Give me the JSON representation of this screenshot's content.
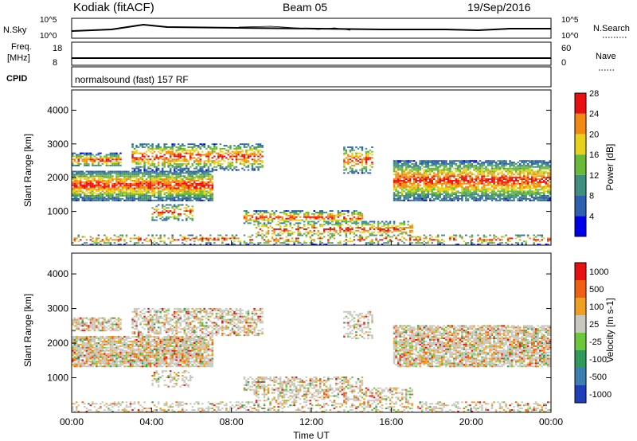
{
  "header": {
    "station": "Kodiak (fitACF)",
    "beam": "Beam 05",
    "date": "19/Sep/2016"
  },
  "nsky_panel": {
    "left_label": "N.Sky",
    "right_label": "N.Search",
    "left_ticks": [
      "10^5",
      "10^0"
    ],
    "right_ticks": [
      "10^5",
      "10^0"
    ]
  },
  "freq_panel": {
    "left_label_line1": "Freq.",
    "left_label_line2": "[MHz]",
    "right_label": "Nave",
    "left_ticks": [
      "18",
      "8"
    ],
    "right_ticks": [
      "60",
      "0"
    ]
  },
  "cpid_panel": {
    "label": "CPID",
    "text": "normalsound (fast) 157 RF"
  },
  "chart_data": [
    {
      "type": "heatmap",
      "title": "",
      "ylabel": "Slant Range [km]",
      "xlabel": "",
      "ylim": [
        0,
        4600
      ],
      "xlim_hours": [
        0,
        24
      ],
      "yticks": [
        "1000",
        "2000",
        "3000",
        "4000"
      ],
      "xticks": [
        "00:00",
        "04:00",
        "08:00",
        "12:00",
        "16:00",
        "20:00",
        "00:00"
      ],
      "colorbar": {
        "label": "Power [dB]",
        "ticks": [
          "4",
          "8",
          "12",
          "16",
          "20",
          "24",
          "28"
        ],
        "range": [
          0,
          30
        ],
        "colors": [
          "#0000e8",
          "#2e5fb0",
          "#3f8f7f",
          "#6aba3a",
          "#e6d21a",
          "#f08a10",
          "#e81010"
        ]
      }
    },
    {
      "type": "heatmap",
      "title": "",
      "ylabel": "Slant Range [km]",
      "xlabel": "Time UT",
      "ylim": [
        0,
        4600
      ],
      "xlim_hours": [
        0,
        24
      ],
      "yticks": [
        "1000",
        "2000",
        "3000",
        "4000"
      ],
      "xticks": [
        "00:00",
        "04:00",
        "08:00",
        "12:00",
        "16:00",
        "20:00",
        "00:00"
      ],
      "colorbar": {
        "label": "Velocity [m s-1]",
        "ticks": [
          "1000",
          "500",
          "100",
          "25",
          "-25",
          "-100",
          "-500",
          "-1000"
        ],
        "colors": [
          "#1f3fb8",
          "#3a7fb0",
          "#2f9a5a",
          "#6ac83a",
          "#c8c8c0",
          "#f0a020",
          "#f06010",
          "#e81010"
        ]
      }
    }
  ]
}
